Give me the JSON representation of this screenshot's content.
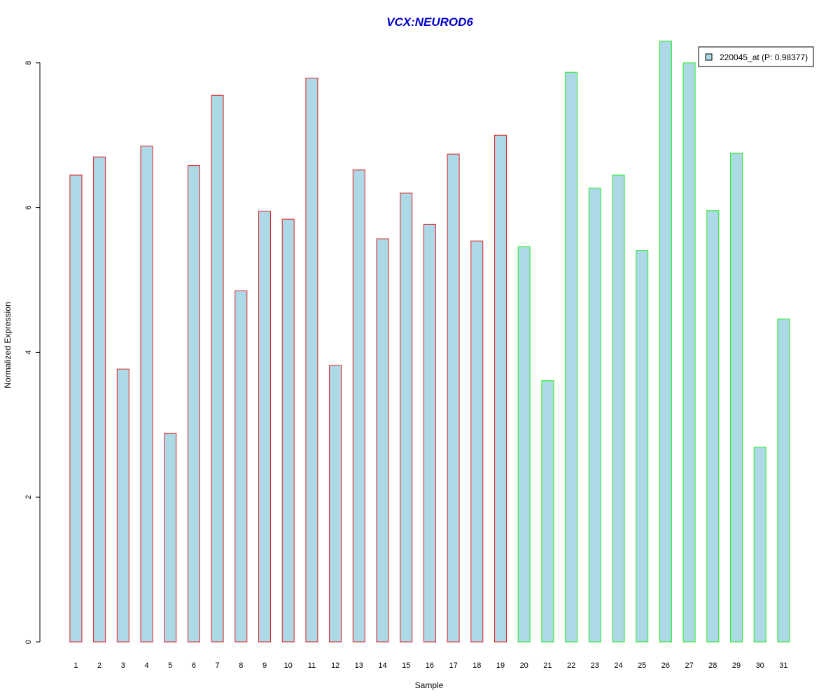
{
  "chart_data": {
    "type": "bar",
    "title": "VCX:NEUROD6",
    "xlabel": "Sample",
    "ylabel": "Normalized Expression",
    "ylim": [
      0,
      8.3
    ],
    "yticks": [
      "0",
      "2",
      "4",
      "6",
      "8"
    ],
    "grid": false,
    "legend_position": "top-right",
    "categories": [
      "1",
      "2",
      "3",
      "4",
      "5",
      "6",
      "7",
      "8",
      "9",
      "10",
      "11",
      "12",
      "13",
      "14",
      "15",
      "16",
      "17",
      "18",
      "19",
      "20",
      "21",
      "22",
      "23",
      "24",
      "25",
      "26",
      "27",
      "28",
      "29",
      "30",
      "31"
    ],
    "series": [
      {
        "name": "220045_at (P: 0.98377)",
        "values": [
          6.45,
          6.7,
          3.77,
          6.85,
          2.88,
          6.58,
          7.55,
          4.85,
          5.95,
          5.84,
          7.79,
          3.82,
          6.52,
          5.57,
          6.2,
          5.77,
          6.74,
          5.54,
          7.0,
          5.46,
          3.61,
          7.87,
          6.27,
          6.45,
          5.41,
          8.3,
          8.0,
          5.96,
          6.75,
          2.69,
          4.46
        ]
      }
    ],
    "group_sizes": [
      19,
      12
    ]
  },
  "colors": {
    "title": "#0000cc",
    "bar_fill": "#add8e6",
    "group1_border": "#dd2222",
    "group2_border": "#22ee22",
    "axis": "#000000"
  }
}
